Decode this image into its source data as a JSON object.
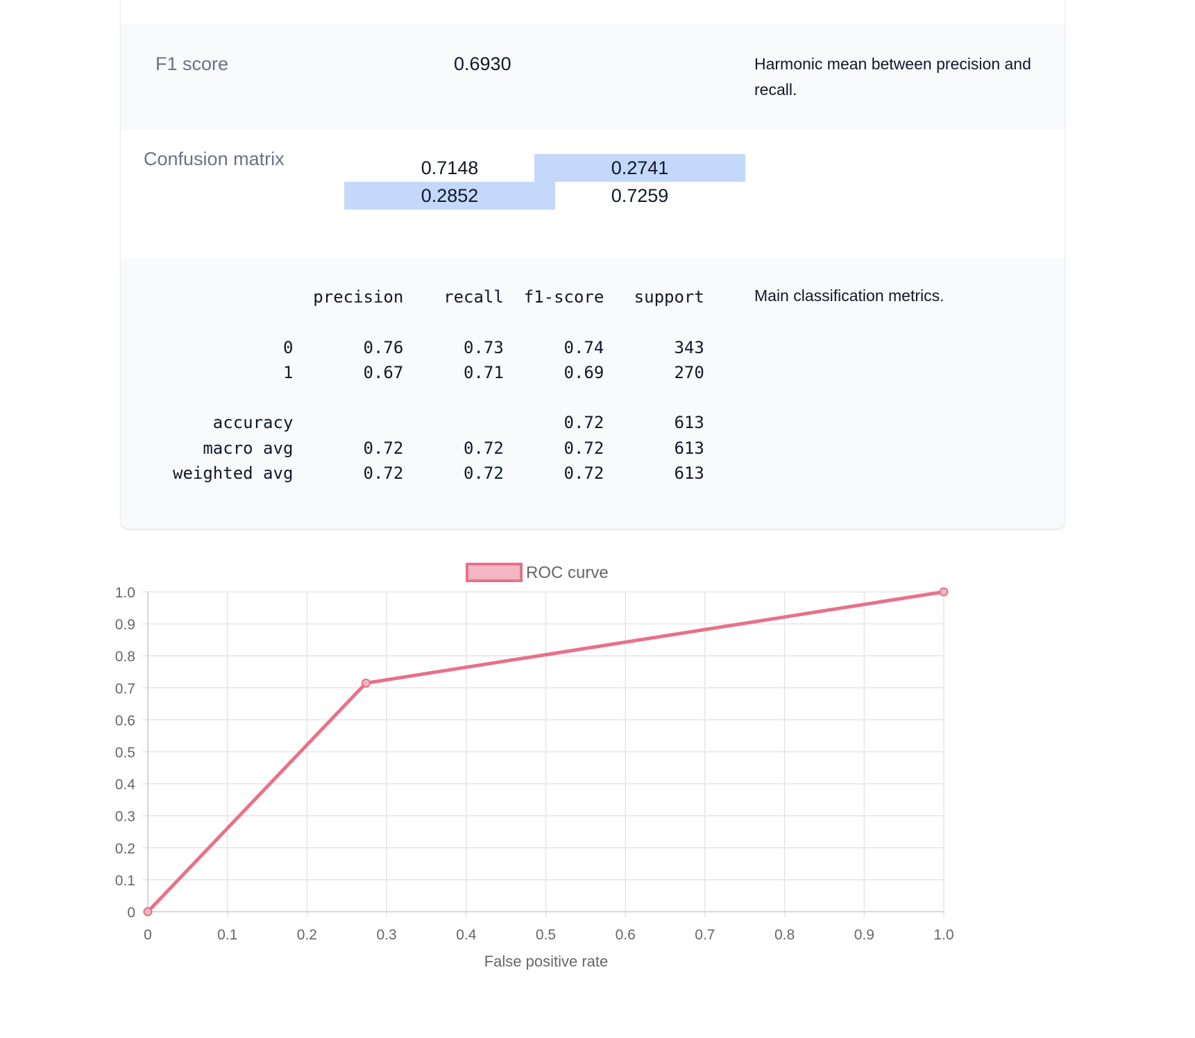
{
  "f1": {
    "label": "F1 score",
    "value": "0.6930",
    "description": "Harmonic mean between precision and recall."
  },
  "confusion_matrix": {
    "label": "Confusion matrix",
    "cells": [
      [
        "0.7148",
        "0.2741"
      ],
      [
        "0.2852",
        "0.7259"
      ]
    ]
  },
  "classification_report": {
    "text": "              precision    recall  f1-score   support\n\n           0       0.76      0.73      0.74       343\n           1       0.67      0.71      0.69       270\n\n    accuracy                           0.72       613\n   macro avg       0.72      0.72      0.72       613\nweighted avg       0.72      0.72      0.72       613",
    "description": "Main classification metrics."
  },
  "colors": {
    "line": "#e8718a",
    "legend_fill": "#f5b6c3",
    "cm_highlight": "#c3d8fa"
  },
  "chart_data": {
    "type": "line",
    "legend": {
      "label": "ROC curve",
      "position": "top-center"
    },
    "xlabel": "False positive rate",
    "ylabel": "",
    "xlim": [
      0,
      1
    ],
    "ylim": [
      0,
      1
    ],
    "grid": true,
    "x_ticks": [
      "0",
      "0.1",
      "0.2",
      "0.3",
      "0.4",
      "0.5",
      "0.6",
      "0.7",
      "0.8",
      "0.9",
      "1.0"
    ],
    "y_ticks": [
      "0",
      "0.1",
      "0.2",
      "0.3",
      "0.4",
      "0.5",
      "0.6",
      "0.7",
      "0.8",
      "0.9",
      "1.0"
    ],
    "series": [
      {
        "name": "ROC curve",
        "points": [
          {
            "x": 0,
            "y": 0
          },
          {
            "x": 0.2741,
            "y": 0.7148
          },
          {
            "x": 1,
            "y": 1
          }
        ]
      }
    ]
  }
}
